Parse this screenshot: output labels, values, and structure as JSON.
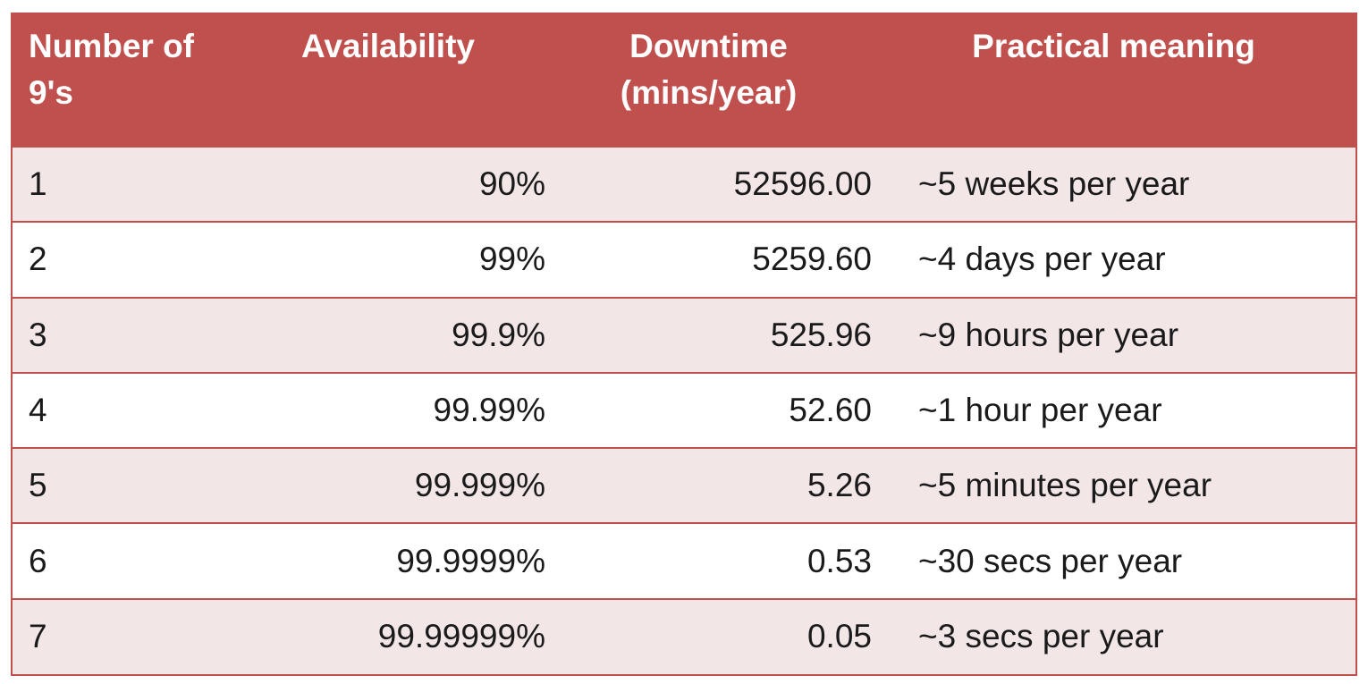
{
  "table": {
    "headers": {
      "number_line1": "Number of",
      "number_line2": "9's",
      "availability": "Availability",
      "downtime_line1": "Downtime",
      "downtime_line2": "(mins/year)",
      "practical": "Practical meaning"
    },
    "rows": [
      {
        "number": "1",
        "availability": "90%",
        "downtime": "52596.00",
        "practical": "~5 weeks per year"
      },
      {
        "number": "2",
        "availability": "99%",
        "downtime": "5259.60",
        "practical": "~4 days per year"
      },
      {
        "number": "3",
        "availability": "99.9%",
        "downtime": "525.96",
        "practical": "~9 hours per year"
      },
      {
        "number": "4",
        "availability": "99.99%",
        "downtime": "52.60",
        "practical": "~1 hour per year"
      },
      {
        "number": "5",
        "availability": "99.999%",
        "downtime": "5.26",
        "practical": "~5 minutes per year"
      },
      {
        "number": "6",
        "availability": "99.9999%",
        "downtime": "0.53",
        "practical": "~30 secs per year"
      },
      {
        "number": "7",
        "availability": "99.99999%",
        "downtime": "0.05",
        "practical": "~3 secs per year"
      }
    ]
  },
  "colors": {
    "header_bg": "#c0504d",
    "header_text": "#ffffff",
    "row_alt_bg": "#f2e6e6",
    "border": "#c0504d"
  }
}
